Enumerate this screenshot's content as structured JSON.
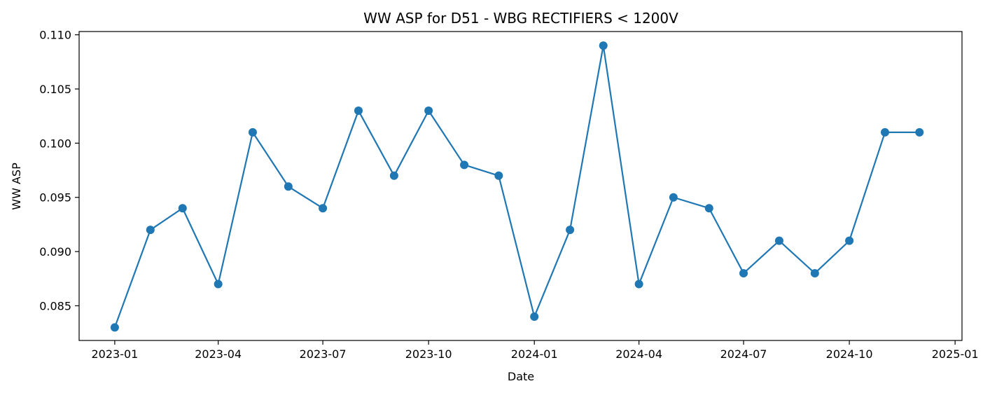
{
  "chart_data": {
    "type": "line",
    "title": "WW ASP for D51 - WBG RECTIFIERS < 1200V",
    "xlabel": "Date",
    "ylabel": "WW ASP",
    "series_color": "#1f77b4",
    "x": [
      "2023-01-01",
      "2023-02-01",
      "2023-03-01",
      "2023-04-01",
      "2023-05-01",
      "2023-06-01",
      "2023-07-01",
      "2023-08-01",
      "2023-09-01",
      "2023-10-01",
      "2023-11-01",
      "2023-12-01",
      "2024-01-01",
      "2024-02-01",
      "2024-03-01",
      "2024-04-01",
      "2024-05-01",
      "2024-06-01",
      "2024-07-01",
      "2024-08-01",
      "2024-09-01",
      "2024-10-01",
      "2024-11-01",
      "2024-12-01"
    ],
    "values": [
      0.083,
      0.092,
      0.094,
      0.087,
      0.101,
      0.096,
      0.094,
      0.103,
      0.097,
      0.103,
      0.098,
      0.097,
      0.084,
      0.092,
      0.109,
      0.087,
      0.095,
      0.094,
      0.088,
      0.091,
      0.088,
      0.091,
      0.101,
      0.101
    ],
    "xlim": [
      "2022-12-01",
      "2025-01-07"
    ],
    "ylim": [
      0.0818,
      0.1103
    ],
    "xticks": [
      {
        "value": "2023-01-01",
        "label": "2023-01"
      },
      {
        "value": "2023-04-01",
        "label": "2023-04"
      },
      {
        "value": "2023-07-01",
        "label": "2023-07"
      },
      {
        "value": "2023-10-01",
        "label": "2023-10"
      },
      {
        "value": "2024-01-01",
        "label": "2024-01"
      },
      {
        "value": "2024-04-01",
        "label": "2024-04"
      },
      {
        "value": "2024-07-01",
        "label": "2024-07"
      },
      {
        "value": "2024-10-01",
        "label": "2024-10"
      },
      {
        "value": "2025-01-01",
        "label": "2025-01"
      }
    ],
    "yticks": [
      {
        "value": 0.085,
        "label": "0.085"
      },
      {
        "value": 0.09,
        "label": "0.090"
      },
      {
        "value": 0.095,
        "label": "0.095"
      },
      {
        "value": 0.1,
        "label": "0.100"
      },
      {
        "value": 0.105,
        "label": "0.105"
      },
      {
        "value": 0.11,
        "label": "0.110"
      }
    ],
    "grid": false,
    "markers": true
  }
}
